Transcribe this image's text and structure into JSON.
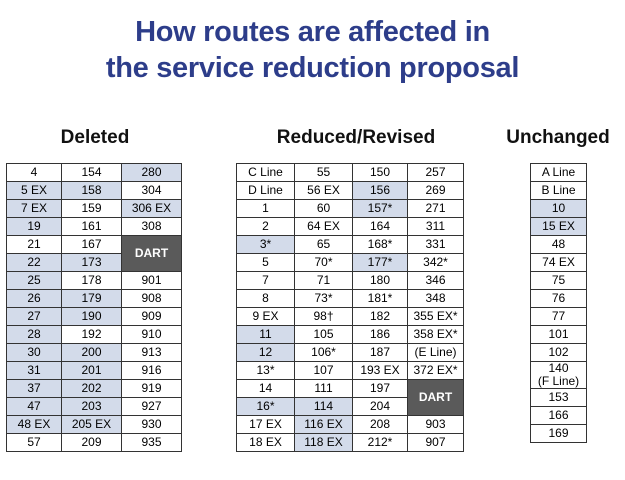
{
  "title": {
    "line1": "How routes are affected in",
    "line2": "the service reduction proposal"
  },
  "deleted": {
    "heading": "Deleted",
    "rows": [
      [
        "4",
        "154",
        "280"
      ],
      [
        "5 EX",
        "158",
        "304"
      ],
      [
        "7 EX",
        "159",
        "306 EX"
      ],
      [
        "19",
        "161",
        "308"
      ],
      [
        "21",
        "167",
        "DART"
      ],
      [
        "22",
        "173",
        ""
      ],
      [
        "25",
        "178",
        "901"
      ],
      [
        "26",
        "179",
        "908"
      ],
      [
        "27",
        "190",
        "909"
      ],
      [
        "28",
        "192",
        "910"
      ],
      [
        "30",
        "200",
        "913"
      ],
      [
        "31",
        "201",
        "916"
      ],
      [
        "37",
        "202",
        "919"
      ],
      [
        "47",
        "203",
        "927"
      ],
      [
        "48 EX",
        "205 EX",
        "930"
      ],
      [
        "57",
        "209",
        "935"
      ]
    ]
  },
  "reduced": {
    "heading": "Reduced/Revised",
    "rows": [
      [
        "C Line",
        "55",
        "150",
        "257"
      ],
      [
        "D Line",
        "56 EX",
        "156",
        "269"
      ],
      [
        "1",
        "60",
        "157*",
        "271"
      ],
      [
        "2",
        "64 EX",
        "164",
        "311"
      ],
      [
        "3*",
        "65",
        "168*",
        "331"
      ],
      [
        "5",
        "70*",
        "177*",
        "342*"
      ],
      [
        "7",
        "71",
        "180",
        "346"
      ],
      [
        "8",
        "73*",
        "181*",
        "348"
      ],
      [
        "9 EX",
        "98†",
        "182",
        "355 EX*"
      ],
      [
        "11",
        "105",
        "186",
        "358 EX*"
      ],
      [
        "12",
        "106*",
        "187",
        "(E Line)"
      ],
      [
        "13*",
        "107",
        "193 EX",
        "372 EX*"
      ],
      [
        "14",
        "111",
        "197",
        "DART"
      ],
      [
        "16*",
        "114",
        "204",
        ""
      ],
      [
        "17 EX",
        "116 EX",
        "208",
        "903"
      ],
      [
        "18 EX",
        "118 EX",
        "212*",
        "907"
      ]
    ]
  },
  "unchanged": {
    "heading": "Unchanged",
    "items": [
      "A Line",
      "B Line",
      "10",
      "15 EX",
      "48",
      "74 EX",
      "75",
      "76",
      "77",
      "101",
      "102",
      "140",
      "(F Line)",
      "153",
      "166",
      "169"
    ]
  },
  "colors": {
    "title": "#2d3d8a",
    "shaded_cell": "#d3dbea",
    "dart_cell": "#5a5a5a"
  }
}
